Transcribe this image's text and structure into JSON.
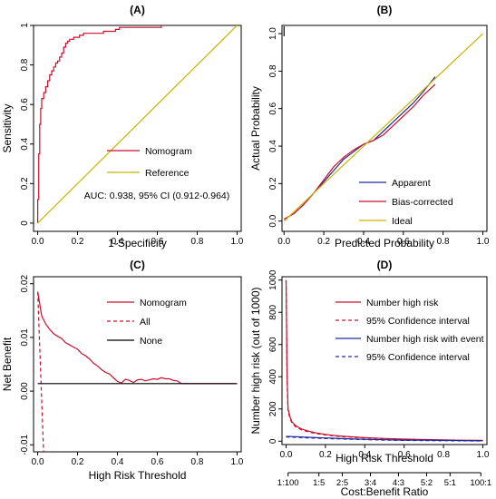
{
  "colors": {
    "red": "#c8102e",
    "gold": "#c8b400",
    "blue": "#1f2a9e",
    "black": "#000000"
  },
  "chart_data": [
    {
      "type": "line",
      "panel_title": "(A)",
      "xlabel": "1-Specificity",
      "ylabel": "Sensitivity",
      "xlim": [
        0,
        1
      ],
      "ylim": [
        0,
        1
      ],
      "xticks": [
        "0.0",
        "0.2",
        "0.4",
        "0.6",
        "0.8",
        "1.0"
      ],
      "yticks": [
        "0",
        "0.2",
        "0.4",
        "0.6",
        "0.8",
        "1"
      ],
      "legend_position": "center-right",
      "annotation": "AUC: 0.938, 95% CI (0.912-0.964)",
      "series": [
        {
          "name": "Nomogram",
          "color": "red",
          "step": true,
          "x": [
            0,
            0,
            0.005,
            0.005,
            0.01,
            0.01,
            0.015,
            0.015,
            0.02,
            0.02,
            0.03,
            0.03,
            0.04,
            0.04,
            0.05,
            0.05,
            0.06,
            0.06,
            0.07,
            0.07,
            0.08,
            0.08,
            0.09,
            0.09,
            0.1,
            0.1,
            0.11,
            0.11,
            0.12,
            0.12,
            0.13,
            0.13,
            0.14,
            0.14,
            0.15,
            0.15,
            0.16,
            0.16,
            0.18,
            0.18,
            0.21,
            0.21,
            0.23,
            0.23,
            0.28,
            0.28,
            0.33,
            0.33,
            0.39,
            0.39,
            0.41,
            0.41,
            0.5,
            0.5,
            0.62,
            0.62,
            0.63
          ],
          "y": [
            0,
            0.12,
            0.12,
            0.35,
            0.35,
            0.5,
            0.5,
            0.58,
            0.58,
            0.63,
            0.63,
            0.66,
            0.66,
            0.69,
            0.69,
            0.72,
            0.72,
            0.75,
            0.75,
            0.77,
            0.77,
            0.79,
            0.79,
            0.81,
            0.81,
            0.82,
            0.82,
            0.84,
            0.84,
            0.86,
            0.86,
            0.89,
            0.89,
            0.91,
            0.91,
            0.92,
            0.92,
            0.93,
            0.93,
            0.94,
            0.94,
            0.95,
            0.95,
            0.96,
            0.96,
            0.96,
            0.96,
            0.97,
            0.97,
            0.98,
            0.98,
            0.99,
            0.99,
            0.99,
            0.99,
            1,
            1
          ]
        },
        {
          "name": "Reference",
          "color": "gold",
          "x": [
            0,
            1
          ],
          "y": [
            0,
            1
          ]
        }
      ]
    },
    {
      "type": "line",
      "panel_title": "(B)",
      "xlabel": "Predicted Probability",
      "ylabel": "Actual Probability",
      "xlim": [
        0,
        1
      ],
      "ylim": [
        0,
        1
      ],
      "xticks": [
        "0.0",
        "0.2",
        "0.4",
        "0.6",
        "0.8",
        "1.0"
      ],
      "yticks": [
        "0.0",
        "0.2",
        "0.4",
        "0.6",
        "0.8",
        "1.0"
      ],
      "legend_position": "bottom-right",
      "series": [
        {
          "name": "Apparent",
          "color": "blue",
          "x": [
            0,
            0.05,
            0.1,
            0.15,
            0.2,
            0.25,
            0.3,
            0.35,
            0.4,
            0.45,
            0.5,
            0.55,
            0.6,
            0.65,
            0.7,
            0.76
          ],
          "y": [
            0.01,
            0.04,
            0.09,
            0.15,
            0.21,
            0.27,
            0.33,
            0.37,
            0.41,
            0.43,
            0.48,
            0.53,
            0.58,
            0.63,
            0.69,
            0.77
          ]
        },
        {
          "name": "Bias-corrected",
          "color": "red",
          "x": [
            0,
            0.05,
            0.1,
            0.15,
            0.2,
            0.25,
            0.3,
            0.35,
            0.4,
            0.45,
            0.5,
            0.55,
            0.6,
            0.65,
            0.7,
            0.76
          ],
          "y": [
            0.01,
            0.04,
            0.09,
            0.15,
            0.22,
            0.29,
            0.34,
            0.38,
            0.41,
            0.43,
            0.46,
            0.51,
            0.56,
            0.61,
            0.67,
            0.73
          ]
        },
        {
          "name": "Ideal",
          "color": "gold",
          "x": [
            0,
            1
          ],
          "y": [
            0,
            1
          ]
        }
      ]
    },
    {
      "type": "line",
      "panel_title": "(C)",
      "xlabel": "High Risk Threshold",
      "ylabel": "Net Benefit",
      "xlim": [
        0,
        1
      ],
      "ylim": [
        -0.01,
        0.02
      ],
      "xticks": [
        "0.0",
        "0.2",
        "0.4",
        "0.6",
        "0.8",
        "1.0"
      ],
      "yticks": [
        "-0.01",
        "0.00",
        "0.01",
        "0.02"
      ],
      "ytick_values": [
        -0.01,
        0,
        0.01,
        0.02
      ],
      "legend_position": "top-right",
      "series": [
        {
          "name": "Nomogram",
          "color": "red",
          "x": [
            0,
            0.02,
            0.04,
            0.06,
            0.08,
            0.1,
            0.12,
            0.14,
            0.16,
            0.18,
            0.2,
            0.22,
            0.24,
            0.26,
            0.28,
            0.3,
            0.32,
            0.34,
            0.36,
            0.38,
            0.4,
            0.42,
            0.44,
            0.46,
            0.48,
            0.5,
            0.52,
            0.54,
            0.56,
            0.58,
            0.6,
            0.62,
            0.64,
            0.66,
            0.68,
            0.7,
            0.72,
            0.8,
            0.9,
            1.0
          ],
          "y": [
            0.0185,
            0.014,
            0.0125,
            0.0115,
            0.0107,
            0.0102,
            0.0098,
            0.009,
            0.0086,
            0.0082,
            0.0078,
            0.007,
            0.0066,
            0.006,
            0.0052,
            0.0047,
            0.004,
            0.0035,
            0.0032,
            0.0025,
            0.0018,
            0.0015,
            0.0022,
            0.002,
            0.0016,
            0.0021,
            0.0022,
            0.0019,
            0.0021,
            0.0023,
            0.0022,
            0.0025,
            0.0023,
            0.0023,
            0.002,
            0.0019,
            0.0014,
            0.0014,
            0.0014,
            0.0014
          ]
        },
        {
          "name": "All",
          "color": "red",
          "dashed": true,
          "x": [
            0,
            0.03
          ],
          "y": [
            0.0185,
            -0.012
          ]
        },
        {
          "name": "None",
          "color": "black",
          "x": [
            0,
            1
          ],
          "y": [
            0.0014,
            0.0014
          ]
        }
      ]
    },
    {
      "type": "line",
      "panel_title": "(D)",
      "xlabel": "High Risk Threshold",
      "ylabel": "Number high risk (out of 1000)",
      "secondary_xlabel": "Cost:Benefit Ratio",
      "secondary_xticks": [
        "1:100",
        "1:5",
        "2:5",
        "3:4",
        "4:3",
        "5:2",
        "5:1",
        "100:1"
      ],
      "secondary_xtick_values": [
        0.01,
        0.1667,
        0.2857,
        0.4286,
        0.5714,
        0.7143,
        0.8333,
        0.99
      ],
      "xlim": [
        0,
        1
      ],
      "ylim": [
        0,
        1000
      ],
      "xticks": [
        "0.0",
        "0.2",
        "0.4",
        "0.6",
        "0.8",
        "1.0"
      ],
      "yticks": [
        "0",
        "200",
        "400",
        "600",
        "800",
        "1000"
      ],
      "legend_position": "top-right",
      "series": [
        {
          "name": "Number high risk",
          "color": "red",
          "x": [
            0,
            0.005,
            0.01,
            0.02,
            0.03,
            0.05,
            0.08,
            0.12,
            0.16,
            0.2,
            0.25,
            0.3,
            0.4,
            0.5,
            0.6,
            0.7,
            0.8,
            0.9,
            1.0
          ],
          "y": [
            1000,
            400,
            200,
            150,
            120,
            95,
            75,
            60,
            50,
            42,
            35,
            30,
            22,
            17,
            13,
            10,
            8,
            6,
            5
          ]
        },
        {
          "name": "95% Confidence interval",
          "color": "red",
          "dashed": true,
          "x": [
            0,
            0.005,
            0.01,
            0.02,
            0.03,
            0.05,
            0.08,
            0.12,
            0.16,
            0.2,
            0.25,
            0.3,
            0.4,
            0.5,
            0.6,
            0.7,
            0.8,
            0.9,
            1.0
          ],
          "y": [
            1000,
            380,
            185,
            140,
            112,
            88,
            70,
            56,
            46,
            39,
            32,
            27,
            20,
            15,
            11,
            8,
            6,
            4,
            3
          ]
        },
        {
          "name": "Number high risk with event",
          "color": "blue",
          "x": [
            0,
            0.05,
            0.1,
            0.2,
            0.3,
            0.4,
            0.5,
            0.6,
            0.7,
            0.8,
            0.9,
            1.0
          ],
          "y": [
            30,
            28,
            25,
            20,
            16,
            12,
            9,
            7,
            6,
            5,
            4,
            3
          ]
        },
        {
          "name": "95% Confidence interval",
          "color": "blue",
          "dashed": true,
          "x": [
            0,
            0.05,
            0.1,
            0.2,
            0.3,
            0.4,
            0.5,
            0.6,
            0.7,
            0.8,
            0.9,
            1.0
          ],
          "y": [
            26,
            24,
            21,
            17,
            13,
            10,
            7,
            5,
            4,
            3,
            2,
            1
          ]
        }
      ]
    }
  ]
}
